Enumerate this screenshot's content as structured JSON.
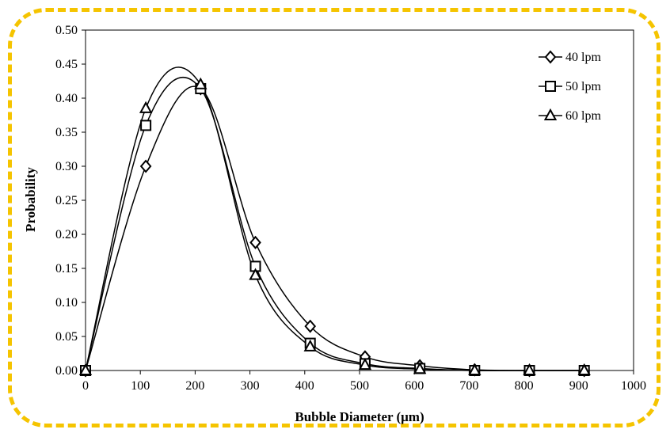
{
  "chart_data": {
    "type": "scatter",
    "title": "",
    "xlabel": "Bubble Diameter (μm)",
    "ylabel": "Probability",
    "xlim": [
      0,
      1000
    ],
    "ylim": [
      0,
      0.5
    ],
    "x_ticks": [
      0,
      100,
      200,
      300,
      400,
      500,
      600,
      700,
      800,
      900,
      1000
    ],
    "y_ticks": [
      "0.00",
      "0.05",
      "0.10",
      "0.15",
      "0.20",
      "0.25",
      "0.30",
      "0.35",
      "0.40",
      "0.45",
      "0.50"
    ],
    "grid": false,
    "legend_position": "top-right",
    "smooth_lines": true,
    "series": [
      {
        "name": "40 lpm",
        "marker": "diamond",
        "x": [
          0,
          110,
          210,
          310,
          410,
          510,
          610,
          710,
          810,
          910
        ],
        "y": [
          0.0,
          0.3,
          0.414,
          0.188,
          0.065,
          0.02,
          0.007,
          0.001,
          0.0,
          0.0
        ]
      },
      {
        "name": "50 lpm",
        "marker": "square",
        "x": [
          0,
          110,
          210,
          310,
          410,
          510,
          610,
          710,
          810,
          910
        ],
        "y": [
          0.0,
          0.36,
          0.414,
          0.153,
          0.04,
          0.01,
          0.003,
          0.0,
          0.0,
          0.0
        ]
      },
      {
        "name": "60 lpm",
        "marker": "triangle",
        "x": [
          0,
          110,
          210,
          310,
          410,
          510,
          610,
          710,
          810,
          910
        ],
        "y": [
          0.0,
          0.385,
          0.42,
          0.14,
          0.035,
          0.008,
          0.002,
          0.0,
          0.0,
          0.0
        ]
      }
    ]
  },
  "colors": {
    "frame": "#f5c400",
    "ink": "#000000",
    "background": "#ffffff"
  }
}
